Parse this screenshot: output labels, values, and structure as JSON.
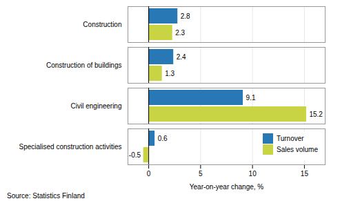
{
  "chart_data": {
    "type": "bar",
    "orientation": "horizontal",
    "categories": [
      "Specialised construction activities",
      "Civil engineering",
      "Construction of buildings",
      "Construction"
    ],
    "series": [
      {
        "name": "Turnover",
        "color": "#2878b5",
        "values": [
          0.6,
          9.1,
          2.4,
          2.8
        ]
      },
      {
        "name": "Sales volume",
        "color": "#c8d444",
        "values": [
          -0.5,
          15.2,
          1.3,
          2.3
        ]
      }
    ],
    "xlabel": "Year-on-year change, %",
    "xlim": [
      -2,
      17
    ],
    "xticks": [
      0,
      5,
      10,
      15
    ],
    "grid": true,
    "data_labels": true,
    "legend": "lower right",
    "annotations": [
      "Source: Statistics Finland"
    ]
  }
}
